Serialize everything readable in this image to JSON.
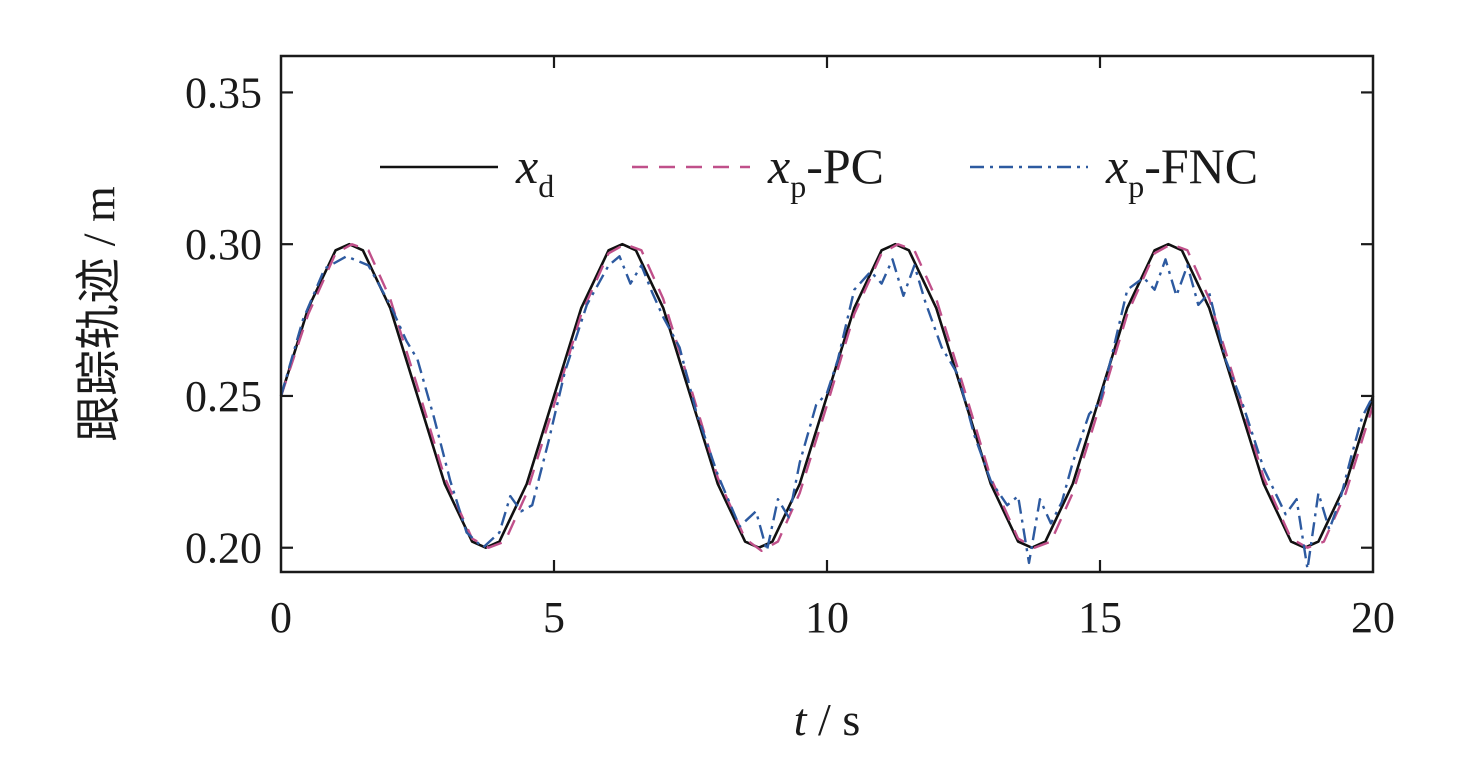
{
  "chart_data": {
    "type": "line",
    "title": "",
    "xlabel": {
      "symbol": "t",
      "unit": "s"
    },
    "ylabel": "跟踪轨迹 / m",
    "xlim": [
      0,
      20
    ],
    "ylim": [
      0.192,
      0.362
    ],
    "x_ticks": [
      "0",
      "5",
      "10",
      "15",
      "20"
    ],
    "x_tick_values": [
      0,
      5,
      10,
      15,
      20
    ],
    "y_ticks": [
      "0.20",
      "0.25",
      "0.30",
      "0.35"
    ],
    "y_tick_values": [
      0.2,
      0.25,
      0.3,
      0.35
    ],
    "grid": false,
    "legend_position": "top, horizontal",
    "series": [
      {
        "name": "x_d",
        "legend": {
          "var": "x",
          "sub": "d",
          "suffix": ""
        },
        "color": "#111111",
        "style": "solid",
        "x": [
          0,
          0.5,
          1.0,
          1.25,
          1.5,
          2.0,
          2.5,
          3.0,
          3.5,
          3.75,
          4.0,
          4.5,
          5.0,
          5.5,
          6.0,
          6.25,
          6.5,
          7.0,
          7.5,
          8.0,
          8.5,
          8.75,
          9.0,
          9.5,
          10.0,
          10.5,
          11.0,
          11.25,
          11.5,
          12.0,
          12.5,
          13.0,
          13.5,
          13.75,
          14.0,
          14.5,
          15.0,
          15.5,
          16.0,
          16.25,
          16.5,
          17.0,
          17.5,
          18.0,
          18.5,
          18.75,
          19.0,
          19.5,
          20.0
        ],
        "y": [
          0.25,
          0.279,
          0.298,
          0.3,
          0.298,
          0.279,
          0.25,
          0.221,
          0.202,
          0.2,
          0.202,
          0.221,
          0.25,
          0.279,
          0.298,
          0.3,
          0.298,
          0.279,
          0.25,
          0.221,
          0.202,
          0.2,
          0.202,
          0.221,
          0.25,
          0.279,
          0.298,
          0.3,
          0.298,
          0.279,
          0.25,
          0.221,
          0.202,
          0.2,
          0.202,
          0.221,
          0.25,
          0.279,
          0.298,
          0.3,
          0.298,
          0.279,
          0.25,
          0.221,
          0.202,
          0.2,
          0.202,
          0.221,
          0.25
        ]
      },
      {
        "name": "x_p-PC",
        "legend": {
          "var": "x",
          "sub": "p",
          "suffix": "-PC"
        },
        "color": "#c0508a",
        "style": "dashed",
        "x": [
          0,
          0.5,
          1.0,
          1.3,
          1.6,
          2.0,
          2.5,
          3.0,
          3.5,
          3.8,
          4.1,
          4.5,
          5.0,
          5.5,
          6.0,
          6.3,
          6.6,
          7.0,
          7.5,
          8.0,
          8.5,
          8.8,
          9.1,
          9.5,
          10.0,
          10.5,
          11.0,
          11.3,
          11.6,
          12.0,
          12.5,
          13.0,
          13.5,
          13.8,
          14.1,
          14.5,
          15.0,
          15.5,
          16.0,
          16.3,
          16.6,
          17.0,
          17.5,
          18.0,
          18.5,
          18.8,
          19.1,
          19.5,
          20.0
        ],
        "y": [
          0.25,
          0.277,
          0.297,
          0.3,
          0.298,
          0.282,
          0.253,
          0.223,
          0.203,
          0.2,
          0.202,
          0.218,
          0.247,
          0.277,
          0.297,
          0.3,
          0.298,
          0.282,
          0.253,
          0.223,
          0.203,
          0.199,
          0.202,
          0.218,
          0.247,
          0.277,
          0.297,
          0.3,
          0.298,
          0.282,
          0.253,
          0.223,
          0.203,
          0.2,
          0.202,
          0.218,
          0.247,
          0.277,
          0.297,
          0.3,
          0.298,
          0.282,
          0.253,
          0.223,
          0.203,
          0.2,
          0.202,
          0.218,
          0.247
        ]
      },
      {
        "name": "x_p-FNC",
        "legend": {
          "var": "x",
          "sub": "p",
          "suffix": "-FNC"
        },
        "color": "#2d5aa0",
        "style": "dashdot",
        "x": [
          0,
          0.4,
          0.8,
          1.2,
          1.6,
          2.0,
          2.3,
          2.5,
          2.8,
          3.1,
          3.4,
          3.7,
          4.0,
          4.2,
          4.4,
          4.6,
          4.9,
          5.2,
          5.6,
          6.0,
          6.2,
          6.4,
          6.6,
          6.8,
          7.0,
          7.3,
          7.6,
          8.0,
          8.4,
          8.7,
          8.9,
          9.1,
          9.3,
          9.5,
          9.8,
          10.0,
          10.2,
          10.5,
          10.8,
          11.0,
          11.2,
          11.4,
          11.6,
          11.8,
          12.1,
          12.4,
          12.7,
          13.0,
          13.3,
          13.5,
          13.7,
          13.9,
          14.1,
          14.3,
          14.5,
          14.8,
          15.0,
          15.2,
          15.5,
          15.8,
          16.0,
          16.2,
          16.4,
          16.6,
          16.8,
          17.0,
          17.3,
          17.6,
          18.0,
          18.4,
          18.6,
          18.8,
          19.0,
          19.2,
          19.4,
          19.6,
          19.8,
          20.0
        ],
        "y": [
          0.25,
          0.275,
          0.292,
          0.296,
          0.293,
          0.28,
          0.268,
          0.262,
          0.243,
          0.222,
          0.205,
          0.2,
          0.205,
          0.217,
          0.212,
          0.214,
          0.235,
          0.258,
          0.28,
          0.293,
          0.296,
          0.287,
          0.293,
          0.284,
          0.276,
          0.266,
          0.245,
          0.224,
          0.207,
          0.212,
          0.199,
          0.216,
          0.21,
          0.228,
          0.247,
          0.251,
          0.262,
          0.285,
          0.291,
          0.287,
          0.295,
          0.283,
          0.293,
          0.281,
          0.266,
          0.257,
          0.237,
          0.222,
          0.214,
          0.217,
          0.195,
          0.216,
          0.208,
          0.215,
          0.228,
          0.244,
          0.248,
          0.262,
          0.285,
          0.289,
          0.285,
          0.295,
          0.283,
          0.293,
          0.28,
          0.284,
          0.262,
          0.248,
          0.226,
          0.211,
          0.216,
          0.193,
          0.218,
          0.206,
          0.216,
          0.23,
          0.243,
          0.25
        ]
      }
    ]
  }
}
